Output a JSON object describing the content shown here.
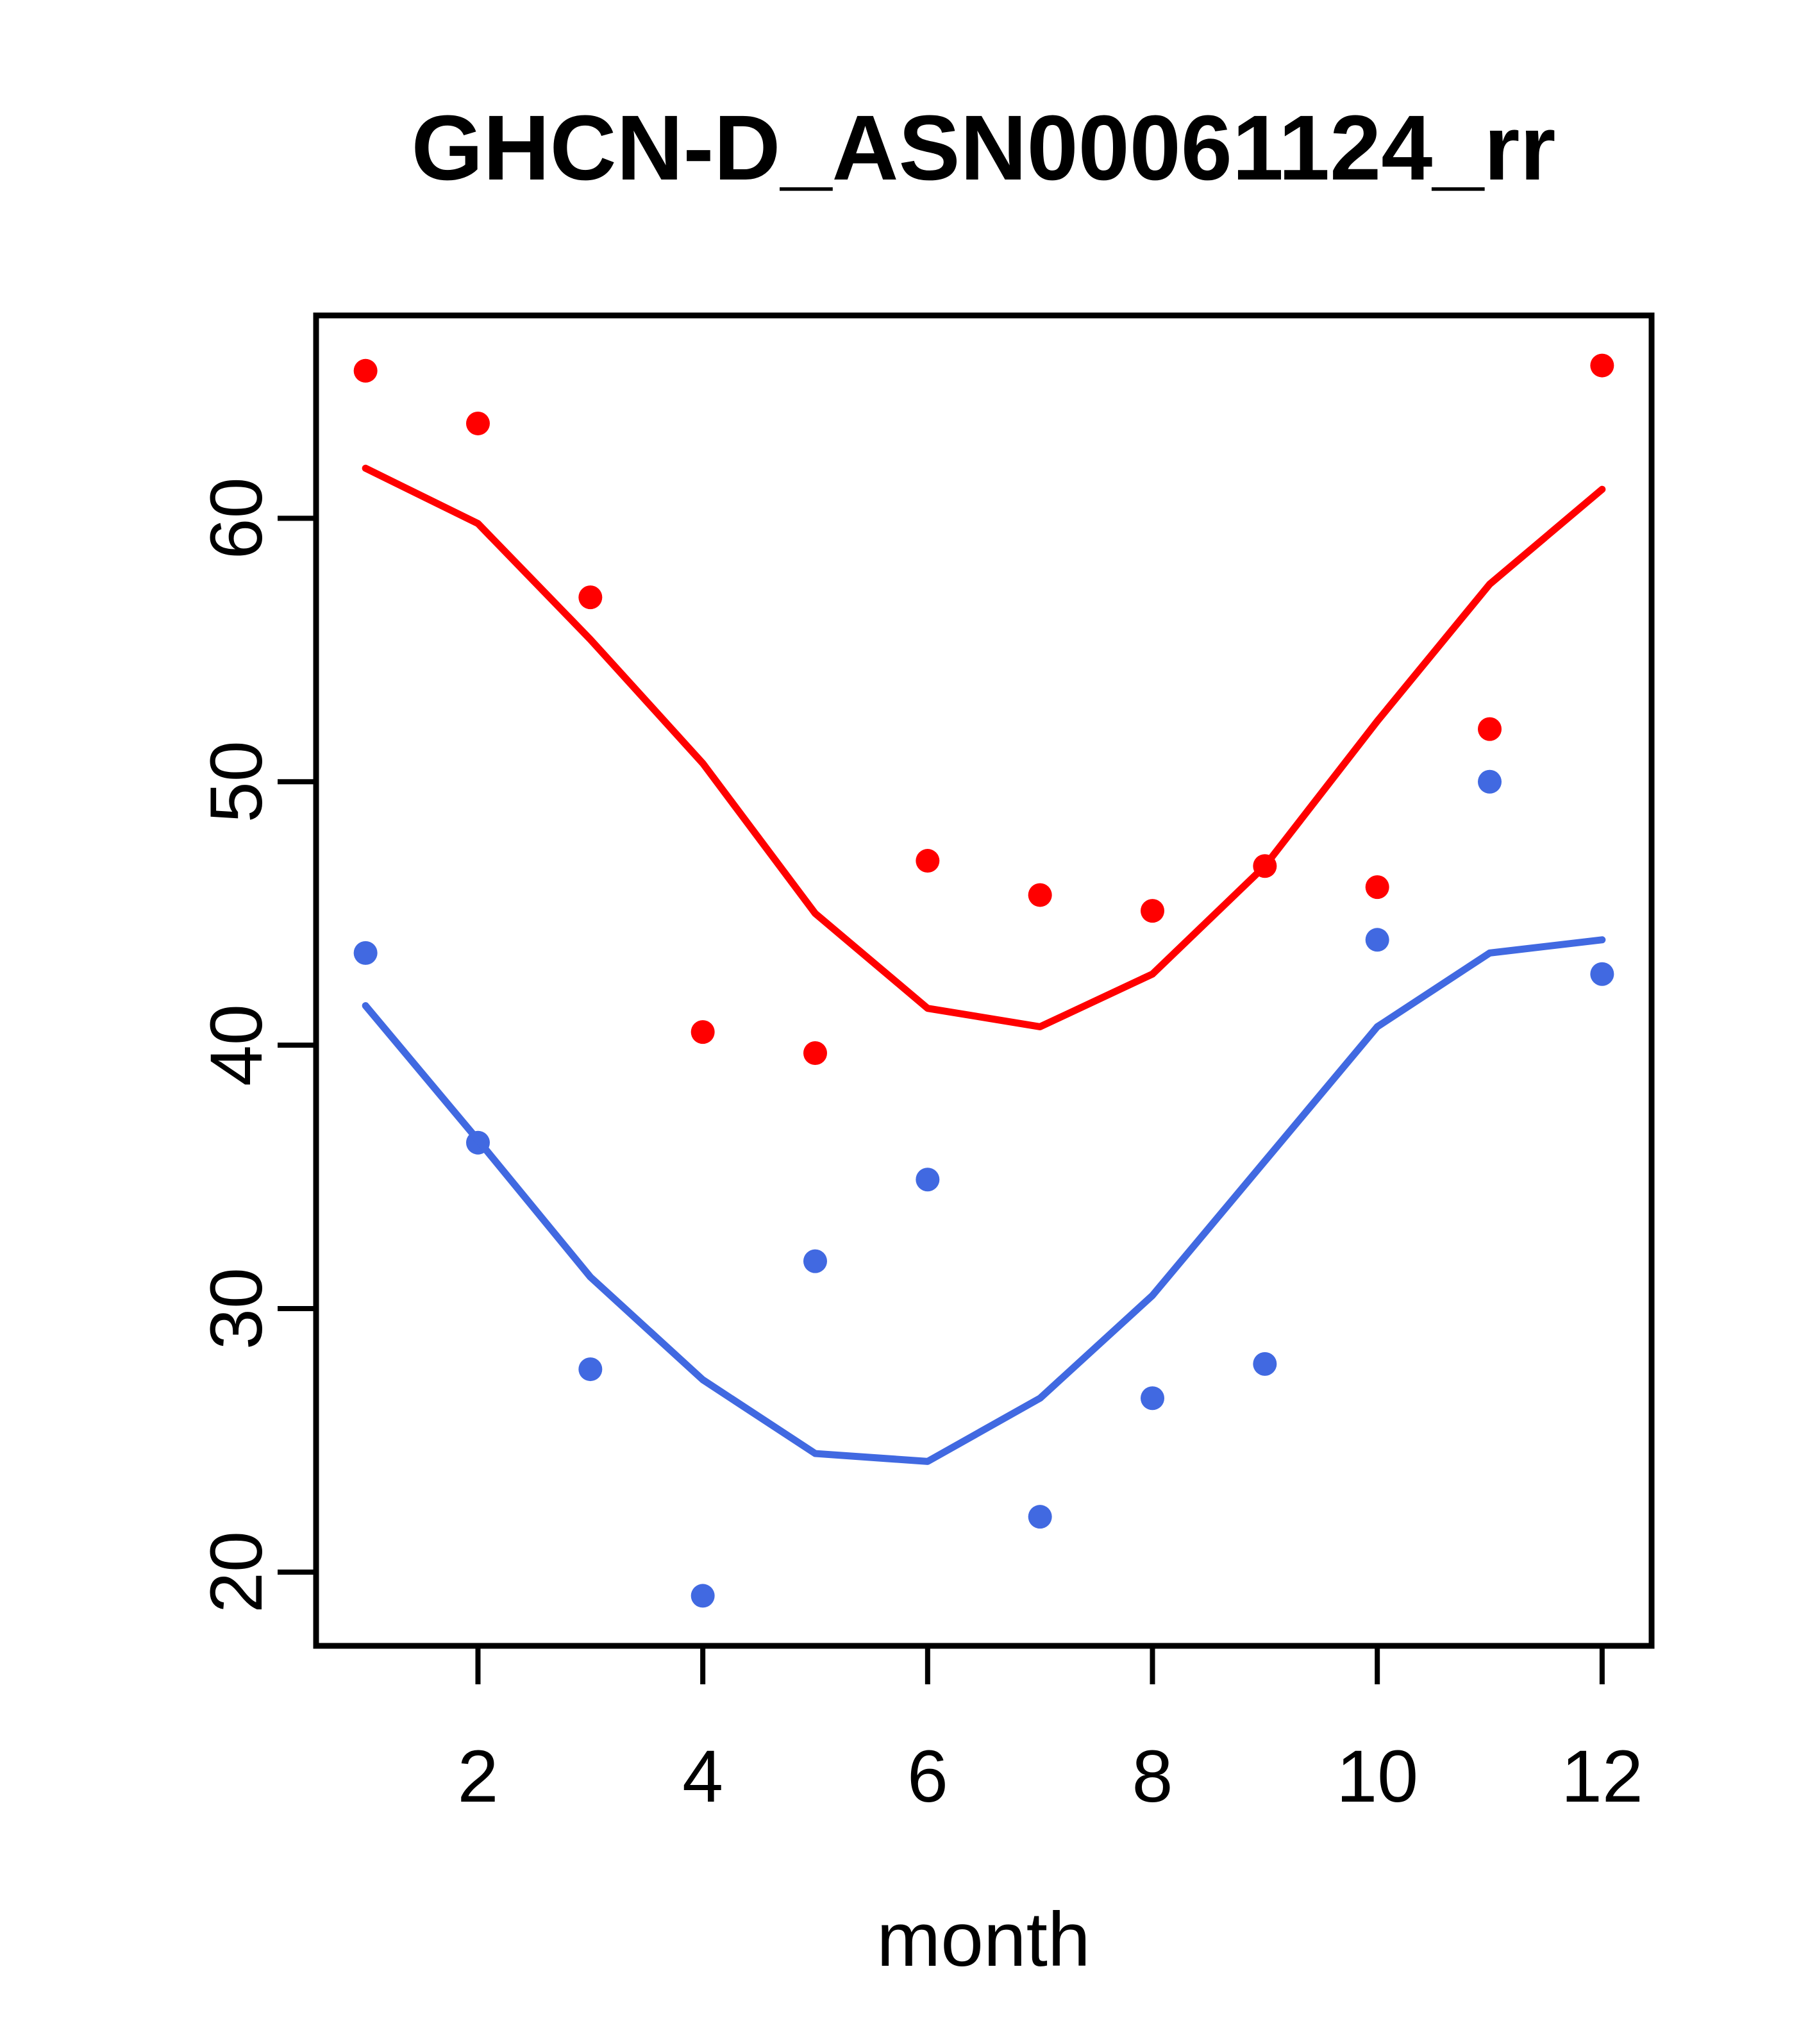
{
  "chart_data": {
    "type": "scatter",
    "title": "GHCN-D_ASN00061124_rr",
    "xlabel": "month",
    "ylabel": "",
    "x": [
      1,
      2,
      3,
      4,
      5,
      6,
      7,
      8,
      9,
      10,
      11,
      12
    ],
    "xlim": [
      0.56,
      12.44
    ],
    "ylim": [
      17.2,
      67.7
    ],
    "x_ticks": [
      2,
      4,
      6,
      8,
      10,
      12
    ],
    "y_ticks": [
      20,
      30,
      40,
      50,
      60
    ],
    "grid": false,
    "legend_position": "none",
    "background_color": "#FFFFFF",
    "axis_color": "#000000",
    "series": [
      {
        "name": "red-points",
        "type": "points",
        "color": "#FF0000",
        "values": [
          65.6,
          63.6,
          57.0,
          40.5,
          39.7,
          47.0,
          45.7,
          45.1,
          46.8,
          46.0,
          52.0,
          65.8
        ]
      },
      {
        "name": "red-line",
        "type": "line",
        "color": "#FF0000",
        "values": [
          61.9,
          59.8,
          55.4,
          50.7,
          45.0,
          41.4,
          40.7,
          42.7,
          46.8,
          52.3,
          57.5,
          61.1
        ]
      },
      {
        "name": "blue-points",
        "type": "points",
        "color": "#4169E1",
        "values": [
          43.5,
          36.3,
          27.7,
          19.1,
          31.8,
          34.9,
          22.1,
          26.6,
          27.9,
          44.0,
          50.0,
          42.7
        ]
      },
      {
        "name": "blue-line",
        "type": "line",
        "color": "#4169E1",
        "values": [
          41.5,
          36.4,
          31.2,
          27.3,
          24.5,
          24.2,
          26.6,
          30.5,
          35.6,
          40.7,
          43.5,
          44.0
        ]
      }
    ]
  }
}
